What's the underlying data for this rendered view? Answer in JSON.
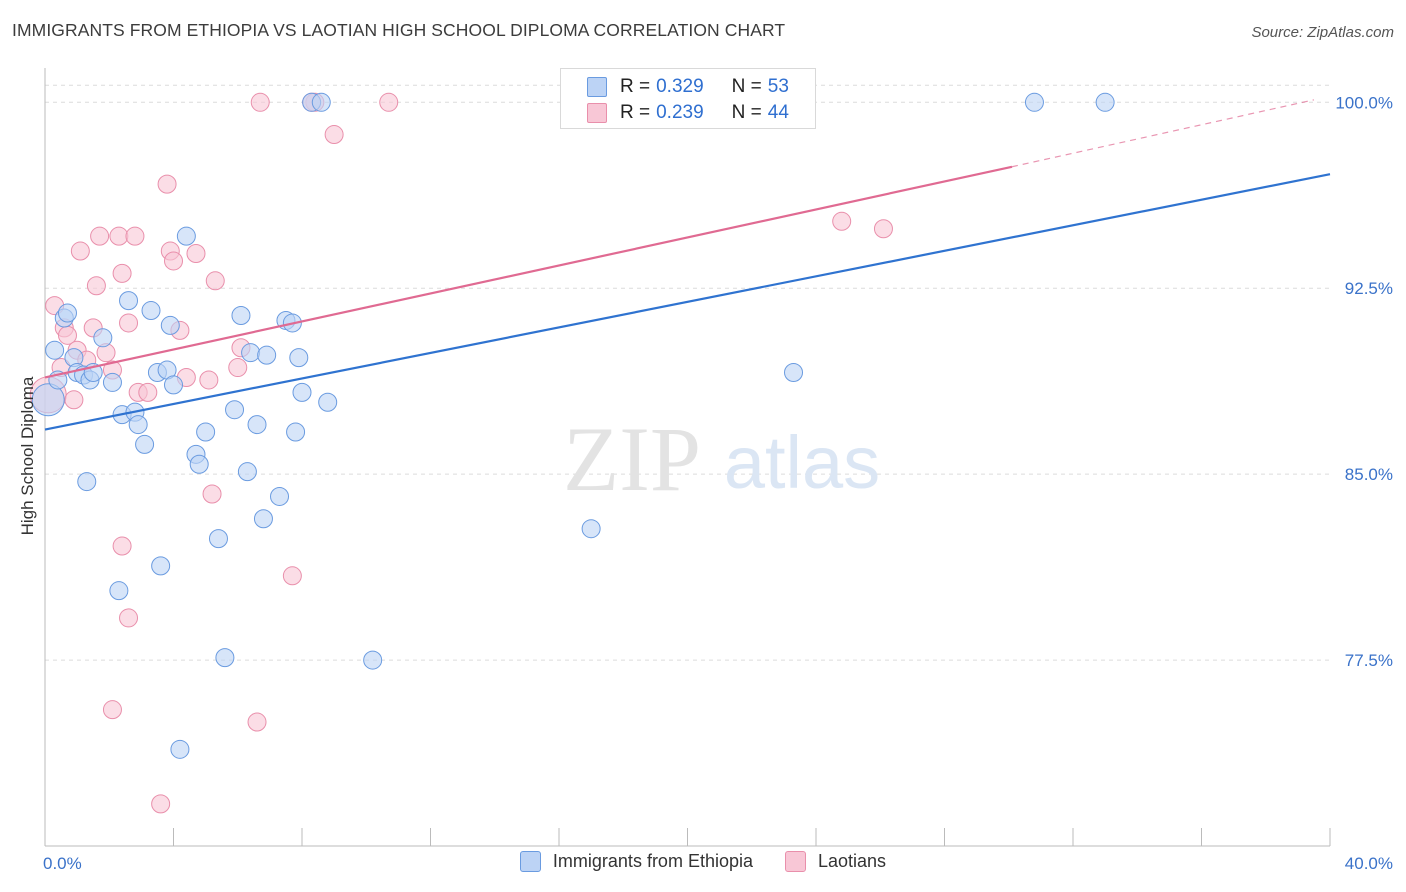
{
  "title": "IMMIGRANTS FROM ETHIOPIA VS LAOTIAN HIGH SCHOOL DIPLOMA CORRELATION CHART",
  "source": "Source: ZipAtlas.com",
  "watermark": {
    "zip": "ZIP",
    "atlas": "atlas"
  },
  "legend": {
    "rows": [
      {
        "r_label": "R =",
        "r_value": "0.329",
        "n_label": "N =",
        "n_value": "53"
      },
      {
        "r_label": "R =",
        "r_value": "0.239",
        "n_label": "N =",
        "n_value": "44"
      }
    ]
  },
  "bottom_legend": [
    "Immigrants from Ethiopia",
    "Laotians"
  ],
  "colors": {
    "blue_fill": "#bcd3f5",
    "blue_stroke": "#6a9be0",
    "blue_line": "#2f73d0",
    "pink_fill": "#f8c7d6",
    "pink_stroke": "#e98fab",
    "pink_line": "#e06a92",
    "tick_text": "#3a72c9",
    "grid": "#dcdcdc"
  },
  "chart_data": {
    "type": "scatter",
    "title": "IMMIGRANTS FROM ETHIOPIA VS LAOTIAN HIGH SCHOOL DIPLOMA CORRELATION CHART",
    "xlabel": "",
    "ylabel": "High School Diploma",
    "xlim": [
      0,
      40
    ],
    "ylim": [
      70.0,
      100.9
    ],
    "x_tick_labels": [
      "0.0%",
      "40.0%"
    ],
    "y_ticks": [
      77.5,
      85.0,
      92.5,
      100.0
    ],
    "y_tick_labels": [
      "77.5%",
      "85.0%",
      "92.5%",
      "100.0%"
    ],
    "grid": true,
    "legend_position": "top-center",
    "series": [
      {
        "name": "Immigrants from Ethiopia",
        "r": 0.329,
        "n": 53,
        "trend": {
          "x": [
            0,
            40
          ],
          "y": [
            86.8,
            97.1
          ]
        },
        "points": [
          [
            0.1,
            88.0,
            16
          ],
          [
            0.3,
            90.0,
            9
          ],
          [
            0.4,
            88.8,
            9
          ],
          [
            0.6,
            91.3,
            9
          ],
          [
            0.7,
            91.5,
            9
          ],
          [
            0.9,
            89.7,
            9
          ],
          [
            1.0,
            89.1,
            9
          ],
          [
            1.2,
            89.0,
            9
          ],
          [
            1.4,
            88.8,
            9
          ],
          [
            1.5,
            89.1,
            9
          ],
          [
            1.8,
            90.5,
            9
          ],
          [
            2.1,
            88.7,
            9
          ],
          [
            2.4,
            87.4,
            9
          ],
          [
            2.6,
            92.0,
            9
          ],
          [
            2.8,
            87.5,
            9
          ],
          [
            2.9,
            87.0,
            9
          ],
          [
            3.1,
            86.2,
            9
          ],
          [
            3.3,
            91.6,
            9
          ],
          [
            3.5,
            89.1,
            9
          ],
          [
            3.8,
            89.2,
            9
          ],
          [
            3.9,
            91.0,
            9
          ],
          [
            4.0,
            88.6,
            9
          ],
          [
            4.4,
            94.6,
            9
          ],
          [
            4.7,
            85.8,
            9
          ],
          [
            4.8,
            85.4,
            9
          ],
          [
            5.0,
            86.7,
            9
          ],
          [
            5.4,
            82.4,
            9
          ],
          [
            5.6,
            77.6,
            9
          ],
          [
            5.9,
            87.6,
            9
          ],
          [
            6.1,
            91.4,
            9
          ],
          [
            6.3,
            85.1,
            9
          ],
          [
            6.4,
            89.9,
            9
          ],
          [
            6.6,
            87.0,
            9
          ],
          [
            6.8,
            83.2,
            9
          ],
          [
            6.9,
            89.8,
            9
          ],
          [
            7.3,
            84.1,
            9
          ],
          [
            7.5,
            91.2,
            9
          ],
          [
            7.7,
            91.1,
            9
          ],
          [
            7.8,
            86.7,
            9
          ],
          [
            7.9,
            89.7,
            9
          ],
          [
            8.0,
            88.3,
            9
          ],
          [
            8.3,
            100.0,
            9
          ],
          [
            8.6,
            100.0,
            9
          ],
          [
            8.8,
            87.9,
            9
          ],
          [
            1.3,
            84.7,
            9
          ],
          [
            2.3,
            80.3,
            9
          ],
          [
            3.6,
            81.3,
            9
          ],
          [
            4.2,
            73.9,
            9
          ],
          [
            10.2,
            77.5,
            9
          ],
          [
            17.0,
            82.8,
            9
          ],
          [
            23.3,
            89.1,
            9
          ],
          [
            30.8,
            100.0,
            9
          ],
          [
            33.0,
            100.0,
            9
          ]
        ]
      },
      {
        "name": "Laotians",
        "r": 0.239,
        "n": 44,
        "trend": {
          "x": [
            0,
            30.1
          ],
          "y": [
            88.9,
            97.4
          ]
        },
        "trend_dashed": {
          "x": [
            30.1,
            39.5
          ],
          "y": [
            97.4,
            100.1
          ]
        },
        "points": [
          [
            0.1,
            88.2,
            18
          ],
          [
            0.3,
            91.8,
            9
          ],
          [
            0.5,
            89.3,
            9
          ],
          [
            0.6,
            90.9,
            9
          ],
          [
            0.7,
            90.6,
            9
          ],
          [
            0.9,
            88.0,
            9
          ],
          [
            1.0,
            90.0,
            9
          ],
          [
            1.1,
            94.0,
            9
          ],
          [
            1.3,
            89.6,
            9
          ],
          [
            1.5,
            90.9,
            9
          ],
          [
            1.6,
            92.6,
            9
          ],
          [
            1.7,
            94.6,
            9
          ],
          [
            1.9,
            89.9,
            9
          ],
          [
            2.1,
            89.2,
            9
          ],
          [
            2.3,
            94.6,
            9
          ],
          [
            2.4,
            93.1,
            9
          ],
          [
            2.6,
            91.1,
            9
          ],
          [
            2.8,
            94.6,
            9
          ],
          [
            2.9,
            88.3,
            9
          ],
          [
            3.2,
            88.3,
            9
          ],
          [
            3.8,
            96.7,
            9
          ],
          [
            3.9,
            94.0,
            9
          ],
          [
            4.0,
            93.6,
            9
          ],
          [
            4.2,
            90.8,
            9
          ],
          [
            4.4,
            88.9,
            9
          ],
          [
            4.7,
            93.9,
            9
          ],
          [
            5.1,
            88.8,
            9
          ],
          [
            5.2,
            84.2,
            9
          ],
          [
            5.3,
            92.8,
            9
          ],
          [
            6.0,
            89.3,
            9
          ],
          [
            6.1,
            90.1,
            9
          ],
          [
            2.4,
            82.1,
            9
          ],
          [
            2.6,
            79.2,
            9
          ],
          [
            2.1,
            75.5,
            9
          ],
          [
            3.6,
            71.7,
            9
          ],
          [
            6.7,
            100.0,
            9
          ],
          [
            6.6,
            75.0,
            9
          ],
          [
            7.7,
            80.9,
            9
          ],
          [
            8.4,
            100.0,
            9
          ],
          [
            9.0,
            98.7,
            9
          ],
          [
            10.7,
            100.0,
            9
          ],
          [
            24.8,
            95.2,
            9
          ],
          [
            26.1,
            94.9,
            9
          ],
          [
            8.3,
            100.0,
            9
          ]
        ]
      }
    ]
  }
}
